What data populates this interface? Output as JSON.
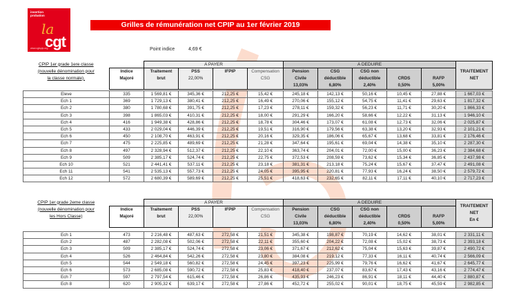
{
  "logo": {
    "line1": "insertion",
    "line2": "probation",
    "script": "la",
    "brand": "cgt",
    "url": "www.cgtspip.org",
    "brand_color": "#e2001a"
  },
  "title": "Grilles de rémunération net CPIP au 1er février 2019",
  "point_indice": {
    "label": "Point indice",
    "value": "4,69 €"
  },
  "groups": {
    "pay": "A PAYER",
    "ded": "A DEDUIRE"
  },
  "columns": {
    "indice": [
      "Indice",
      "Majoré"
    ],
    "brut": [
      "Traitement",
      "brut"
    ],
    "pss": [
      "PSS",
      "22,00%"
    ],
    "ifpip": [
      "IFPIP"
    ],
    "comp": [
      "Compensation",
      "CSG"
    ],
    "pension": [
      "Pension",
      "Civile",
      "13,03%"
    ],
    "csg": [
      "CSG",
      "déductible",
      "6,80%"
    ],
    "csgnd": [
      "CSG non",
      "déductible",
      "2,40%"
    ],
    "crds": [
      "CRDS",
      "0,50%"
    ],
    "rafp": [
      "RAFP",
      "5,00%"
    ]
  },
  "table1": {
    "label": [
      "CPIP 1er grade 1ere classe",
      "(nouvelle dénomination pour",
      "la classe normale)."
    ],
    "net_header": [
      "TRAITEMENT",
      "NET"
    ],
    "rows": [
      [
        "Eleve",
        "335",
        "1 569,81 €",
        "345,36 €",
        "212,25 €",
        "15,42 €",
        "245,18 €",
        "142,13 €",
        "50,16 €",
        "10,45 €",
        "27,88 €",
        "1 667,03 €"
      ],
      [
        "Ech 1",
        "369",
        "1 729,13 €",
        "380,41 €",
        "212,25 €",
        "16,49 €",
        "270,06 €",
        "155,12 €",
        "54,75 €",
        "11,41 €",
        "29,63 €",
        "1 817,32 €"
      ],
      [
        "Ech 2",
        "380",
        "1 780,68 €",
        "391,75 €",
        "212,25 €",
        "17,23 €",
        "278,11 €",
        "159,32 €",
        "56,23 €",
        "11,71 €",
        "30,20 €",
        "1 866,33 €"
      ],
      [
        "Ech 3",
        "398",
        "1 865,03 €",
        "410,31 €",
        "212,25 €",
        "18,00 €",
        "291,29 €",
        "166,20 €",
        "58,66 €",
        "12,22 €",
        "31,13 €",
        "1 946,10 €"
      ],
      [
        "Ech 4",
        "416",
        "1 949,38 €",
        "428,86 €",
        "212,25 €",
        "18,78 €",
        "304,46 €",
        "173,07 €",
        "61,08 €",
        "12,73 €",
        "32,06 €",
        "2 025,87 €"
      ],
      [
        "Ech 5",
        "433",
        "2 029,04 €",
        "446,39 €",
        "212,25 €",
        "19,51 €",
        "316,90 €",
        "179,56 €",
        "63,38 €",
        "13,20 €",
        "32,93 €",
        "2 101,21 €"
      ],
      [
        "Ech 6",
        "450",
        "2 108,70 €",
        "463,91 €",
        "212,25 €",
        "20,16 €",
        "329,35 €",
        "186,06 €",
        "65,67 €",
        "13,68 €",
        "33,81 €",
        "2 176,46 €"
      ],
      [
        "Ech 7",
        "475",
        "2 225,85 €",
        "489,69 €",
        "212,25 €",
        "21,28 €",
        "347,64 €",
        "195,61 €",
        "69,04 €",
        "14,38 €",
        "35,10 €",
        "2 287,30 €"
      ],
      [
        "Ech 8",
        "497",
        "2 328,94 €",
        "512,37 €",
        "212,25 €",
        "22,10 €",
        "363,74 €",
        "204,01 €",
        "72,00 €",
        "15,00 €",
        "36,23 €",
        "2 384,68 €"
      ],
      [
        "Ech 9",
        "509",
        "2 385,17 €",
        "524,74 €",
        "212,25 €",
        "22,75 €",
        "372,53 €",
        "208,59 €",
        "73,62 €",
        "15,34 €",
        "36,85 €",
        "2 437,98 €"
      ],
      [
        "Ech 10",
        "521",
        "2 441,41 €",
        "537,11 €",
        "212,25 €",
        "23,18 €",
        "381,31 €",
        "213,18 €",
        "75,24 €",
        "15,67 €",
        "37,47 €",
        "2 491,08 €"
      ],
      [
        "Ech 11",
        "541",
        "2 535,13 €",
        "557,73 €",
        "212,25 €",
        "24,05 €",
        "395,95 €",
        "220,81 €",
        "77,93 €",
        "16,24 €",
        "38,50 €",
        "2 579,72 €"
      ],
      [
        "Ech 12",
        "572",
        "2 680,39 €",
        "589,69 €",
        "212,25 €",
        "25,51 €",
        "418,63 €",
        "232,65 €",
        "82,11 €",
        "17,11 €",
        "40,10 €",
        "2 717,23 €"
      ]
    ]
  },
  "table2": {
    "label": [
      "CPIP 1er grade 2eme classe",
      "(nouvelle dénomination pour",
      "les Hors Classe)"
    ],
    "net_header": [
      "TRAITEMENT",
      "NET",
      "En €"
    ],
    "rows": [
      [
        "Ech 1",
        "473",
        "2 216,48 €",
        "487,63 €",
        "272,58 €",
        "21,51 €",
        "345,38 €",
        "198,87 €",
        "70,19 €",
        "14,62 €",
        "38,01 €",
        "2 331,11 €"
      ],
      [
        "Ech 2",
        "487",
        "2 282,08 €",
        "502,06 €",
        "272,58 €",
        "22,11 €",
        "355,60 €",
        "204,22 €",
        "72,08 €",
        "15,02 €",
        "38,73 €",
        "2 393,18 €"
      ],
      [
        "Ech 3",
        "509",
        "2 385,17 €",
        "524,74 €",
        "272,58 €",
        "23,06 €",
        "371,67 €",
        "212,62 €",
        "75,04 €",
        "15,63 €",
        "39,87 €",
        "2 490,72 €"
      ],
      [
        "Ech 4",
        "526",
        "2 464,84 €",
        "542,26 €",
        "272,58 €",
        "23,80 €",
        "384,08 €",
        "219,12 €",
        "77,33 €",
        "16,11 €",
        "40,74 €",
        "2 566,09 €"
      ],
      [
        "Ech 5",
        "544",
        "2 549,18 €",
        "560,82 €",
        "272,58 €",
        "24,45 €",
        "397,23 €",
        "225,99 €",
        "79,76 €",
        "16,62 €",
        "41,67 €",
        "2 645,77 €"
      ],
      [
        "Ech 6",
        "573",
        "2 685,08 €",
        "590,72 €",
        "272,58 €",
        "25,83 €",
        "418,40 €",
        "237,07 €",
        "83,67 €",
        "17,43 €",
        "43,16 €",
        "2 774,47 €"
      ],
      [
        "Ech 7",
        "597",
        "2 797,54 €",
        "615,46 €",
        "272,58 €",
        "26,86 €",
        "435,93 €",
        "246,23 €",
        "86,91 €",
        "18,11 €",
        "44,40 €",
        "2 880,87 €"
      ],
      [
        "Ech 8",
        "620",
        "2 905,32 €",
        "639,17 €",
        "272,58 €",
        "27,86 €",
        "452,72 €",
        "255,02 €",
        "90,01 €",
        "18,75 €",
        "45,59 €",
        "2 982,85 €"
      ]
    ]
  }
}
